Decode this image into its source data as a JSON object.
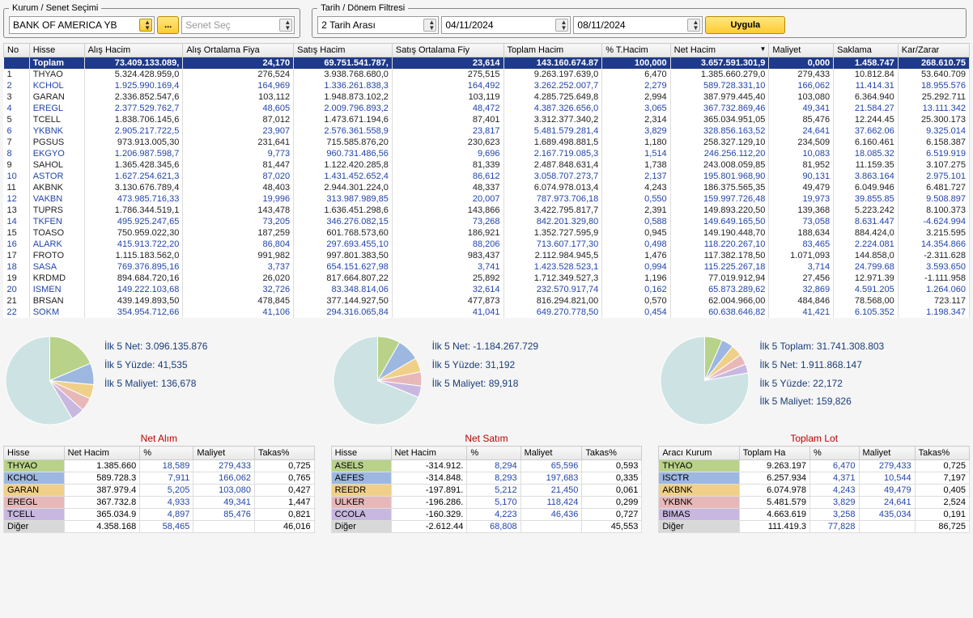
{
  "filters": {
    "kurum_legend": "Kurum / Senet Seçimi",
    "kurum": "BANK OF AMERICA YB",
    "dots": "...",
    "senet_placeholder": "Senet Seç",
    "tarih_legend": "Tarih / Dönem Filtresi",
    "period": "2 Tarih Arası",
    "date1": "04/11/2024",
    "date2": "08/11/2024",
    "apply": "Uygula"
  },
  "main": {
    "headers": [
      "No",
      "Hisse",
      "Alış Hacim",
      "Alış Ortalama Fiya",
      "Satış Hacim",
      "Satış Ortalama Fiy",
      "Toplam Hacim",
      "% T.Hacim",
      "Net Hacim",
      "Maliyet",
      "Saklama",
      "Kar/Zarar"
    ],
    "sorted_col": 8,
    "total": [
      "",
      "Toplam",
      "73.409.133.089,",
      "24,170",
      "69.751.541.787,",
      "23,614",
      "143.160.674.87",
      "100,000",
      "3.657.591.301,9",
      "0,000",
      "1.458.747",
      "268.610.75"
    ],
    "rows": [
      [
        "1",
        "THYAO",
        "5.324.428.959,0",
        "276,524",
        "3.938.768.680,0",
        "275,515",
        "9.263.197.639,0",
        "6,470",
        "1.385.660.279,0",
        "279,433",
        "10.812.84",
        "53.640.709"
      ],
      [
        "2",
        "KCHOL",
        "1.925.990.169,4",
        "164,969",
        "1.336.261.838,3",
        "164,492",
        "3.262.252.007,7",
        "2,279",
        "589.728.331,10",
        "166,062",
        "11.414.31",
        "18.955.576"
      ],
      [
        "3",
        "GARAN",
        "2.336.852.547,6",
        "103,112",
        "1.948.873.102,2",
        "103,119",
        "4.285.725.649,8",
        "2,994",
        "387.979.445,40",
        "103,080",
        "6.364.940",
        "25.292.711"
      ],
      [
        "4",
        "EREGL",
        "2.377.529.762,7",
        "48,605",
        "2.009.796.893,2",
        "48,472",
        "4.387.326.656,0",
        "3,065",
        "367.732.869,46",
        "49,341",
        "21.584.27",
        "13.111.342"
      ],
      [
        "5",
        "TCELL",
        "1.838.706.145,6",
        "87,012",
        "1.473.671.194,6",
        "87,401",
        "3.312.377.340,2",
        "2,314",
        "365.034.951,05",
        "85,476",
        "12.244.45",
        "25.300.173"
      ],
      [
        "6",
        "YKBNK",
        "2.905.217.722,5",
        "23,907",
        "2.576.361.558,9",
        "23,817",
        "5.481.579.281,4",
        "3,829",
        "328.856.163,52",
        "24,641",
        "37.662.06",
        "9.325.014"
      ],
      [
        "7",
        "PGSUS",
        "973.913.005,30",
        "231,641",
        "715.585.876,20",
        "230,623",
        "1.689.498.881,5",
        "1,180",
        "258.327.129,10",
        "234,509",
        "6.160.461",
        "6.158.387"
      ],
      [
        "8",
        "EKGYO",
        "1.206.987.598,7",
        "9,773",
        "960.731.486,56",
        "9,696",
        "2.167.719.085,3",
        "1,514",
        "246.256.112,20",
        "10,083",
        "18.085.32",
        "6.519.919"
      ],
      [
        "9",
        "SAHOL",
        "1.365.428.345,6",
        "81,447",
        "1.122.420.285,8",
        "81,339",
        "2.487.848.631,4",
        "1,738",
        "243.008.059,85",
        "81,952",
        "11.159.35",
        "3.107.275"
      ],
      [
        "10",
        "ASTOR",
        "1.627.254.621,3",
        "87,020",
        "1.431.452.652,4",
        "86,612",
        "3.058.707.273,7",
        "2,137",
        "195.801.968,90",
        "90,131",
        "3.863.164",
        "2.975.101"
      ],
      [
        "11",
        "AKBNK",
        "3.130.676.789,4",
        "48,403",
        "2.944.301.224,0",
        "48,337",
        "6.074.978.013,4",
        "4,243",
        "186.375.565,35",
        "49,479",
        "6.049.946",
        "6.481.727"
      ],
      [
        "12",
        "VAKBN",
        "473.985.716,33",
        "19,996",
        "313.987.989,85",
        "20,007",
        "787.973.706,18",
        "0,550",
        "159.997.726,48",
        "19,973",
        "39.855.85",
        "9.508.897"
      ],
      [
        "13",
        "TUPRS",
        "1.786.344.519,1",
        "143,478",
        "1.636.451.298,6",
        "143,866",
        "3.422.795.817,7",
        "2,391",
        "149.893.220,50",
        "139,368",
        "5.223.242",
        "8.100.373"
      ],
      [
        "14",
        "TKFEN",
        "495.925.247,65",
        "73,205",
        "346.276.082,15",
        "73,268",
        "842.201.329,80",
        "0,588",
        "149.649.165,50",
        "73,058",
        "8.631.447",
        "-4.624.994"
      ],
      [
        "15",
        "TOASO",
        "750.959.022,30",
        "187,259",
        "601.768.573,60",
        "186,921",
        "1.352.727.595,9",
        "0,945",
        "149.190.448,70",
        "188,634",
        "884.424,0",
        "3.215.595"
      ],
      [
        "16",
        "ALARK",
        "415.913.722,20",
        "86,804",
        "297.693.455,10",
        "88,206",
        "713.607.177,30",
        "0,498",
        "118.220.267,10",
        "83,465",
        "2.224.081",
        "14.354.866"
      ],
      [
        "17",
        "FROTO",
        "1.115.183.562,0",
        "991,982",
        "997.801.383,50",
        "983,437",
        "2.112.984.945,5",
        "1,476",
        "117.382.178,50",
        "1.071,093",
        "144.858,0",
        "-2.311.628"
      ],
      [
        "18",
        "SASA",
        "769.376.895,16",
        "3,737",
        "654.151.627,98",
        "3,741",
        "1.423.528.523,1",
        "0,994",
        "115.225.267,18",
        "3,714",
        "24.799.68",
        "3.593.650"
      ],
      [
        "19",
        "KRDMD",
        "894.684.720,16",
        "26,020",
        "817.664.807,22",
        "25,892",
        "1.712.349.527,3",
        "1,196",
        "77.019.912,94",
        "27,456",
        "12.971.39",
        "-1.111.958"
      ],
      [
        "20",
        "ISMEN",
        "149.222.103,68",
        "32,726",
        "83.348.814,06",
        "32,614",
        "232.570.917,74",
        "0,162",
        "65.873.289,62",
        "32,869",
        "4.591.205",
        "1.264.060"
      ],
      [
        "21",
        "BRSAN",
        "439.149.893,50",
        "478,845",
        "377.144.927,50",
        "477,873",
        "816.294.821,00",
        "0,570",
        "62.004.966,00",
        "484,846",
        "78.568,00",
        "723.117"
      ],
      [
        "22",
        "SOKM",
        "354.954.712,66",
        "41,106",
        "294.316.065,84",
        "41,041",
        "649.270.778,50",
        "0,454",
        "60.638.646,82",
        "41,421",
        "6.105.352",
        "1.198.347"
      ]
    ]
  },
  "panels": [
    {
      "title": "Net Alım",
      "stats": [
        "İlk 5 Net: 3.096.135.876",
        "İlk 5 Yüzde: 41,535",
        "İlk 5 Maliyet: 136,678"
      ],
      "headers": [
        "Hisse",
        "Net Hacim",
        "%",
        "Maliyet",
        "Takas%"
      ],
      "rows": [
        [
          "THYAO",
          "1.385.660",
          "18,589",
          "279,433",
          "0,725"
        ],
        [
          "KCHOL",
          "589.728.3",
          "7,911",
          "166,062",
          "0,765"
        ],
        [
          "GARAN",
          "387.979.4",
          "5,205",
          "103,080",
          "0,427"
        ],
        [
          "EREGL",
          "367.732.8",
          "4,933",
          "49,341",
          "1,447"
        ],
        [
          "TCELL",
          "365.034.9",
          "4,897",
          "85,476",
          "0,821"
        ],
        [
          "Diğer",
          "4.358.168",
          "58,465",
          "",
          "46,016"
        ]
      ],
      "pie": [
        {
          "v": 18.6,
          "c": "#b8d28a"
        },
        {
          "v": 7.9,
          "c": "#9db8e0"
        },
        {
          "v": 5.2,
          "c": "#f0d088"
        },
        {
          "v": 4.9,
          "c": "#e8b8b8"
        },
        {
          "v": 4.9,
          "c": "#c8b8e0"
        },
        {
          "v": 58.5,
          "c": "#cde3e3"
        }
      ]
    },
    {
      "title": "Net Satım",
      "stats": [
        "İlk 5 Net: -1.184.267.729",
        "İlk 5 Yüzde: 31,192",
        "İlk 5 Maliyet: 89,918"
      ],
      "headers": [
        "Hisse",
        "Net Hacim",
        "%",
        "Maliyet",
        "Takas%"
      ],
      "rows": [
        [
          "ASELS",
          "-314.912.",
          "8,294",
          "65,596",
          "0,593"
        ],
        [
          "AEFES",
          "-314.848.",
          "8,293",
          "197,683",
          "0,335"
        ],
        [
          "REEDR",
          "-197.891.",
          "5,212",
          "21,450",
          "0,061"
        ],
        [
          "ULKER",
          "-196.286.",
          "5,170",
          "118,424",
          "0,299"
        ],
        [
          "CCOLA",
          "-160.329.",
          "4,223",
          "46,436",
          "0,727"
        ],
        [
          "Diğer",
          "-2.612.44",
          "68,808",
          "",
          "45,553"
        ]
      ],
      "pie": [
        {
          "v": 8.3,
          "c": "#b8d28a"
        },
        {
          "v": 8.3,
          "c": "#9db8e0"
        },
        {
          "v": 5.2,
          "c": "#f0d088"
        },
        {
          "v": 5.2,
          "c": "#e8b8b8"
        },
        {
          "v": 4.2,
          "c": "#c8b8e0"
        },
        {
          "v": 68.8,
          "c": "#cde3e3"
        }
      ]
    },
    {
      "title": "Toplam Lot",
      "stats": [
        "İlk 5 Toplam: 31.741.308.803",
        "İlk 5 Net: 1.911.868.147",
        "İlk 5 Yüzde: 22,172",
        "İlk 5 Maliyet: 159,826"
      ],
      "headers": [
        "Aracı Kurum",
        "Toplam Ha",
        "%",
        "Maliyet",
        "Takas%"
      ],
      "rows": [
        [
          "THYAO",
          "9.263.197",
          "6,470",
          "279,433",
          "0,725"
        ],
        [
          "ISCTR",
          "6.257.934",
          "4,371",
          "10,544",
          "7,197"
        ],
        [
          "AKBNK",
          "6.074.978",
          "4,243",
          "49,479",
          "0,405"
        ],
        [
          "YKBNK",
          "5.481.579",
          "3,829",
          "24,641",
          "2,524"
        ],
        [
          "BIMAS",
          "4.663.619",
          "3,258",
          "435,034",
          "0,191"
        ],
        [
          "Diğer",
          "111.419.3",
          "77,828",
          "",
          "86,725"
        ]
      ],
      "pie": [
        {
          "v": 6.5,
          "c": "#b8d28a"
        },
        {
          "v": 4.4,
          "c": "#9db8e0"
        },
        {
          "v": 4.2,
          "c": "#f0d088"
        },
        {
          "v": 3.8,
          "c": "#e8b8b8"
        },
        {
          "v": 3.3,
          "c": "#c8b8e0"
        },
        {
          "v": 77.8,
          "c": "#cde3e3"
        }
      ]
    }
  ]
}
